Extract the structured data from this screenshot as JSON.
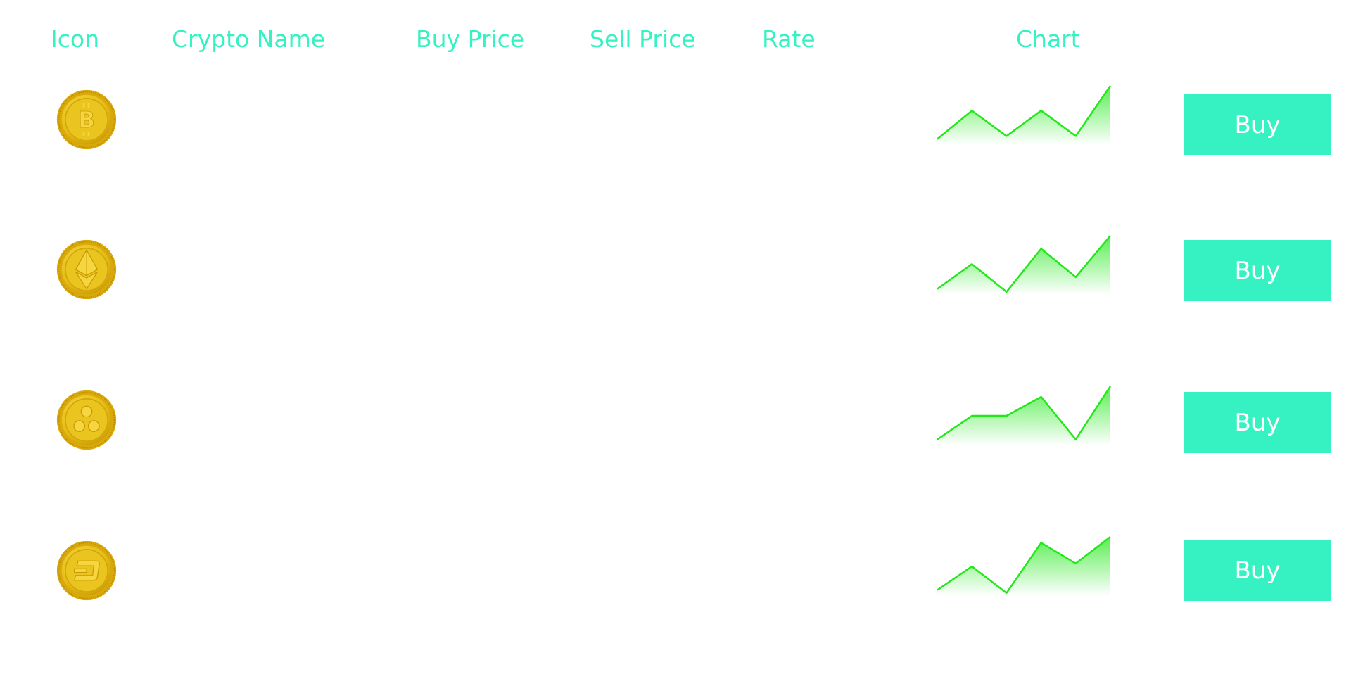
{
  "header": {
    "icon": "Icon",
    "crypto_name": "Crypto Name",
    "buy_price": "Buy Price",
    "sell_price": "Sell Price",
    "rate": "Rate",
    "chart": "Chart"
  },
  "colors": {
    "accent": "#36f2c3",
    "button_text": "#ffffff",
    "spark_line": "#22e81a",
    "coin_gold": "#e8c21f"
  },
  "rows": [
    {
      "icon": "bitcoin-coin-icon",
      "name": "",
      "buy_price": "",
      "sell_price": "",
      "rate": "",
      "spark": [
        0.1,
        0.58,
        0.15,
        0.58,
        0.15,
        1.0
      ],
      "button_label": "Buy"
    },
    {
      "icon": "ethereum-coin-icon",
      "name": "",
      "buy_price": "",
      "sell_price": "",
      "rate": "",
      "spark": [
        0.1,
        0.52,
        0.05,
        0.78,
        0.3,
        1.0
      ],
      "button_label": "Buy"
    },
    {
      "icon": "ripple-coin-icon",
      "name": "",
      "buy_price": "",
      "sell_price": "",
      "rate": "",
      "spark": [
        0.1,
        0.5,
        0.5,
        0.82,
        0.1,
        1.0
      ],
      "button_label": "Buy"
    },
    {
      "icon": "dash-coin-icon",
      "name": "",
      "buy_price": "",
      "sell_price": "",
      "rate": "",
      "spark": [
        0.1,
        0.5,
        0.05,
        0.9,
        0.55,
        1.0
      ],
      "button_label": "Buy"
    }
  ]
}
